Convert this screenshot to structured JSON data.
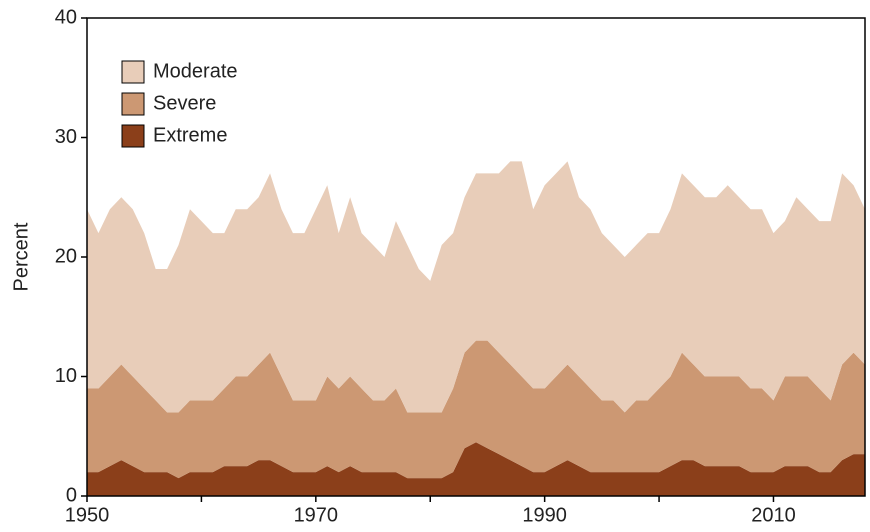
{
  "chart_data": {
    "type": "stacked_area",
    "y_label": "Percent",
    "x": [
      1950,
      1951,
      1952,
      1953,
      1954,
      1955,
      1956,
      1957,
      1958,
      1959,
      1960,
      1961,
      1962,
      1963,
      1964,
      1965,
      1966,
      1967,
      1968,
      1969,
      1970,
      1971,
      1972,
      1973,
      1974,
      1975,
      1976,
      1977,
      1978,
      1979,
      1980,
      1981,
      1982,
      1983,
      1984,
      1985,
      1986,
      1987,
      1988,
      1989,
      1990,
      1991,
      1992,
      1993,
      1994,
      1995,
      1996,
      1997,
      1998,
      1999,
      2000,
      2001,
      2002,
      2003,
      2004,
      2005,
      2006,
      2007,
      2008,
      2009,
      2010,
      2011,
      2012,
      2013,
      2014,
      2015,
      2016,
      2017,
      2018
    ],
    "series": [
      {
        "name": "Moderate",
        "color": "#e8cdb9",
        "values": [
          15,
          13,
          14,
          14,
          14,
          13,
          11,
          12,
          14,
          16,
          15,
          14,
          13,
          14,
          14,
          14,
          15,
          14,
          14,
          14,
          16,
          16,
          13,
          15,
          13,
          13,
          12,
          14,
          14,
          12,
          11,
          14,
          13,
          13,
          14,
          14,
          15,
          17,
          18,
          15,
          17,
          17,
          17,
          15,
          15,
          14,
          13,
          13,
          13,
          14,
          13,
          14,
          15,
          15,
          15,
          15,
          16,
          15,
          15,
          15,
          14,
          13,
          15,
          14,
          14,
          15,
          16,
          14,
          13
        ]
      },
      {
        "name": "Severe",
        "color": "#cc9873",
        "values": [
          7,
          7,
          7.5,
          8,
          7.5,
          7,
          6,
          5,
          5.5,
          6,
          6,
          6,
          6.5,
          7.5,
          7.5,
          8,
          9,
          7.5,
          6,
          6,
          6,
          7.5,
          7,
          7.5,
          7,
          6,
          6,
          7,
          5.5,
          5.5,
          5.5,
          5.5,
          7,
          8,
          8.5,
          9,
          8.5,
          8,
          7.5,
          7,
          7,
          7.5,
          8,
          7.5,
          7,
          6,
          6,
          5,
          6,
          6,
          7,
          7.5,
          9,
          8,
          7.5,
          7.5,
          7.5,
          7.5,
          7,
          7,
          6,
          7.5,
          7.5,
          7.5,
          7,
          6,
          8,
          8.5,
          7.5
        ]
      },
      {
        "name": "Extreme",
        "color": "#8b3f1a",
        "values": [
          2,
          2,
          2.5,
          3,
          2.5,
          2,
          2,
          2,
          1.5,
          2,
          2,
          2,
          2.5,
          2.5,
          2.5,
          3,
          3,
          2.5,
          2,
          2,
          2,
          2.5,
          2,
          2.5,
          2,
          2,
          2,
          2,
          1.5,
          1.5,
          1.5,
          1.5,
          2,
          4,
          4.5,
          4,
          3.5,
          3,
          2.5,
          2,
          2,
          2.5,
          3,
          2.5,
          2,
          2,
          2,
          2,
          2,
          2,
          2,
          2.5,
          3,
          3,
          2.5,
          2.5,
          2.5,
          2.5,
          2,
          2,
          2,
          2.5,
          2.5,
          2.5,
          2,
          2,
          3,
          3.5,
          3.5
        ]
      }
    ],
    "xlim": [
      1950,
      2018
    ],
    "xticks": [
      1950,
      1970,
      1990,
      2010
    ],
    "xminorticks": [
      1960,
      1980,
      2000
    ],
    "ylim": [
      0,
      40
    ],
    "yticks": [
      0,
      10,
      20,
      30,
      40
    ]
  }
}
